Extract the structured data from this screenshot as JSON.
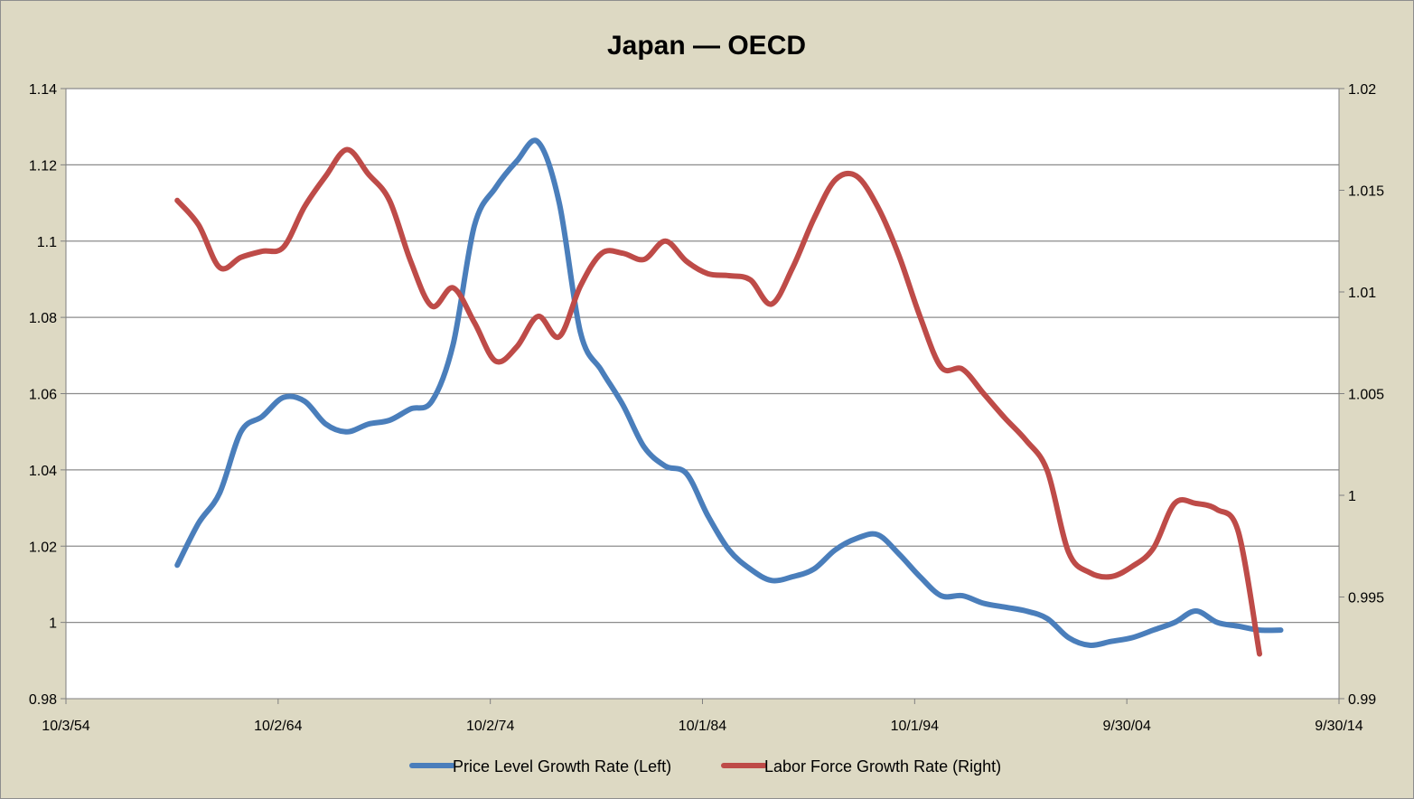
{
  "chart_data": {
    "type": "line",
    "title": "Japan — OECD",
    "grid": true,
    "legend_position": "bottom",
    "x_axis": {
      "type": "date",
      "range": [
        "1954-10-03",
        "2014-09-30"
      ],
      "tick_labels": [
        "10/3/54",
        "10/2/64",
        "10/2/74",
        "10/1/84",
        "10/1/94",
        "9/30/04",
        "9/30/14"
      ],
      "tick_dates": [
        "1954-10-03",
        "1964-10-02",
        "1974-10-02",
        "1984-10-01",
        "1994-10-01",
        "2004-09-30",
        "2014-09-30"
      ]
    },
    "y_left": {
      "range": [
        0.98,
        1.14
      ],
      "ticks": [
        0.98,
        1,
        1.02,
        1.04,
        1.06,
        1.08,
        1.1,
        1.12,
        1.14
      ],
      "tick_labels": [
        "0.98",
        "1",
        "1.02",
        "1.04",
        "1.06",
        "1.08",
        "1.1",
        "1.12",
        "1.14"
      ]
    },
    "y_right": {
      "range": [
        0.99,
        1.02
      ],
      "ticks": [
        0.99,
        0.995,
        1,
        1.005,
        1.01,
        1.015,
        1.02
      ],
      "tick_labels": [
        "0.99",
        "0.995",
        "1",
        "1.005",
        "1.01",
        "1.015",
        "1.02"
      ]
    },
    "series": [
      {
        "name": "Price Level Growth Rate (Left)",
        "axis": "left",
        "color": "#4a7ebb",
        "points": [
          [
            "1960-01-01",
            1.015
          ],
          [
            "1961-01-01",
            1.026
          ],
          [
            "1962-01-01",
            1.034
          ],
          [
            "1963-01-01",
            1.05
          ],
          [
            "1964-01-01",
            1.054
          ],
          [
            "1965-01-01",
            1.059
          ],
          [
            "1966-01-01",
            1.058
          ],
          [
            "1967-01-01",
            1.052
          ],
          [
            "1968-01-01",
            1.05
          ],
          [
            "1969-01-01",
            1.052
          ],
          [
            "1970-01-01",
            1.053
          ],
          [
            "1971-01-01",
            1.056
          ],
          [
            "1972-01-01",
            1.058
          ],
          [
            "1973-01-01",
            1.073
          ],
          [
            "1974-01-01",
            1.104
          ],
          [
            "1975-01-01",
            1.114
          ],
          [
            "1976-01-01",
            1.121
          ],
          [
            "1977-01-01",
            1.126
          ],
          [
            "1978-01-01",
            1.11
          ],
          [
            "1979-01-01",
            1.076
          ],
          [
            "1980-01-01",
            1.066
          ],
          [
            "1981-01-01",
            1.057
          ],
          [
            "1982-01-01",
            1.046
          ],
          [
            "1983-01-01",
            1.041
          ],
          [
            "1984-01-01",
            1.039
          ],
          [
            "1985-01-01",
            1.028
          ],
          [
            "1986-01-01",
            1.019
          ],
          [
            "1987-01-01",
            1.014
          ],
          [
            "1988-01-01",
            1.011
          ],
          [
            "1989-01-01",
            1.012
          ],
          [
            "1990-01-01",
            1.014
          ],
          [
            "1991-01-01",
            1.019
          ],
          [
            "1992-01-01",
            1.022
          ],
          [
            "1993-01-01",
            1.023
          ],
          [
            "1994-01-01",
            1.018
          ],
          [
            "1995-01-01",
            1.012
          ],
          [
            "1996-01-01",
            1.007
          ],
          [
            "1997-01-01",
            1.007
          ],
          [
            "1998-01-01",
            1.005
          ],
          [
            "1999-01-01",
            1.004
          ],
          [
            "2000-01-01",
            1.003
          ],
          [
            "2001-01-01",
            1.001
          ],
          [
            "2002-01-01",
            0.996
          ],
          [
            "2003-01-01",
            0.994
          ],
          [
            "2004-01-01",
            0.995
          ],
          [
            "2005-01-01",
            0.996
          ],
          [
            "2006-01-01",
            0.998
          ],
          [
            "2007-01-01",
            1
          ],
          [
            "2008-01-01",
            1.003
          ],
          [
            "2009-01-01",
            1
          ],
          [
            "2010-01-01",
            0.999
          ],
          [
            "2011-01-01",
            0.998
          ],
          [
            "2012-01-01",
            0.998
          ]
        ]
      },
      {
        "name": "Labor Force Growth Rate (Right)",
        "axis": "right",
        "color": "#be4b48",
        "points": [
          [
            "1960-01-01",
            1.0145
          ],
          [
            "1961-01-01",
            1.0133
          ],
          [
            "1962-01-01",
            1.0112
          ],
          [
            "1963-01-01",
            1.0117
          ],
          [
            "1964-01-01",
            1.012
          ],
          [
            "1965-01-01",
            1.0122
          ],
          [
            "1966-01-01",
            1.0142
          ],
          [
            "1967-01-01",
            1.0157
          ],
          [
            "1968-01-01",
            1.017
          ],
          [
            "1969-01-01",
            1.0158
          ],
          [
            "1970-01-01",
            1.0145
          ],
          [
            "1971-01-01",
            1.0115
          ],
          [
            "1972-01-01",
            1.0093
          ],
          [
            "1973-01-01",
            1.0102
          ],
          [
            "1974-01-01",
            1.0085
          ],
          [
            "1975-01-01",
            1.0066
          ],
          [
            "1976-01-01",
            1.0073
          ],
          [
            "1977-01-01",
            1.0088
          ],
          [
            "1978-01-01",
            1.0078
          ],
          [
            "1979-01-01",
            1.0103
          ],
          [
            "1980-01-01",
            1.0119
          ],
          [
            "1981-01-01",
            1.0119
          ],
          [
            "1982-01-01",
            1.0116
          ],
          [
            "1983-01-01",
            1.0125
          ],
          [
            "1984-01-01",
            1.0115
          ],
          [
            "1985-01-01",
            1.0109
          ],
          [
            "1986-01-01",
            1.0108
          ],
          [
            "1987-01-01",
            1.0106
          ],
          [
            "1988-01-01",
            1.0094
          ],
          [
            "1989-01-01",
            1.0112
          ],
          [
            "1990-01-01",
            1.0136
          ],
          [
            "1991-01-01",
            1.0155
          ],
          [
            "1992-01-01",
            1.0157
          ],
          [
            "1993-01-01",
            1.0142
          ],
          [
            "1994-01-01",
            1.0118
          ],
          [
            "1995-01-01",
            1.0088
          ],
          [
            "1996-01-01",
            1.0063
          ],
          [
            "1997-01-01",
            1.0062
          ],
          [
            "1998-01-01",
            1.005
          ],
          [
            "1999-01-01",
            1.0038
          ],
          [
            "2000-01-01",
            1.0027
          ],
          [
            "2001-01-01",
            1.0012
          ],
          [
            "2002-01-01",
            0.9972
          ],
          [
            "2003-01-01",
            0.9962
          ],
          [
            "2004-01-01",
            0.996
          ],
          [
            "2005-01-01",
            0.9965
          ],
          [
            "2006-01-01",
            0.9974
          ],
          [
            "2007-01-01",
            0.9996
          ],
          [
            "2008-01-01",
            0.9996
          ],
          [
            "2009-01-01",
            0.9993
          ],
          [
            "2010-01-01",
            0.9982
          ],
          [
            "2011-01-01",
            0.9922
          ]
        ]
      }
    ]
  }
}
